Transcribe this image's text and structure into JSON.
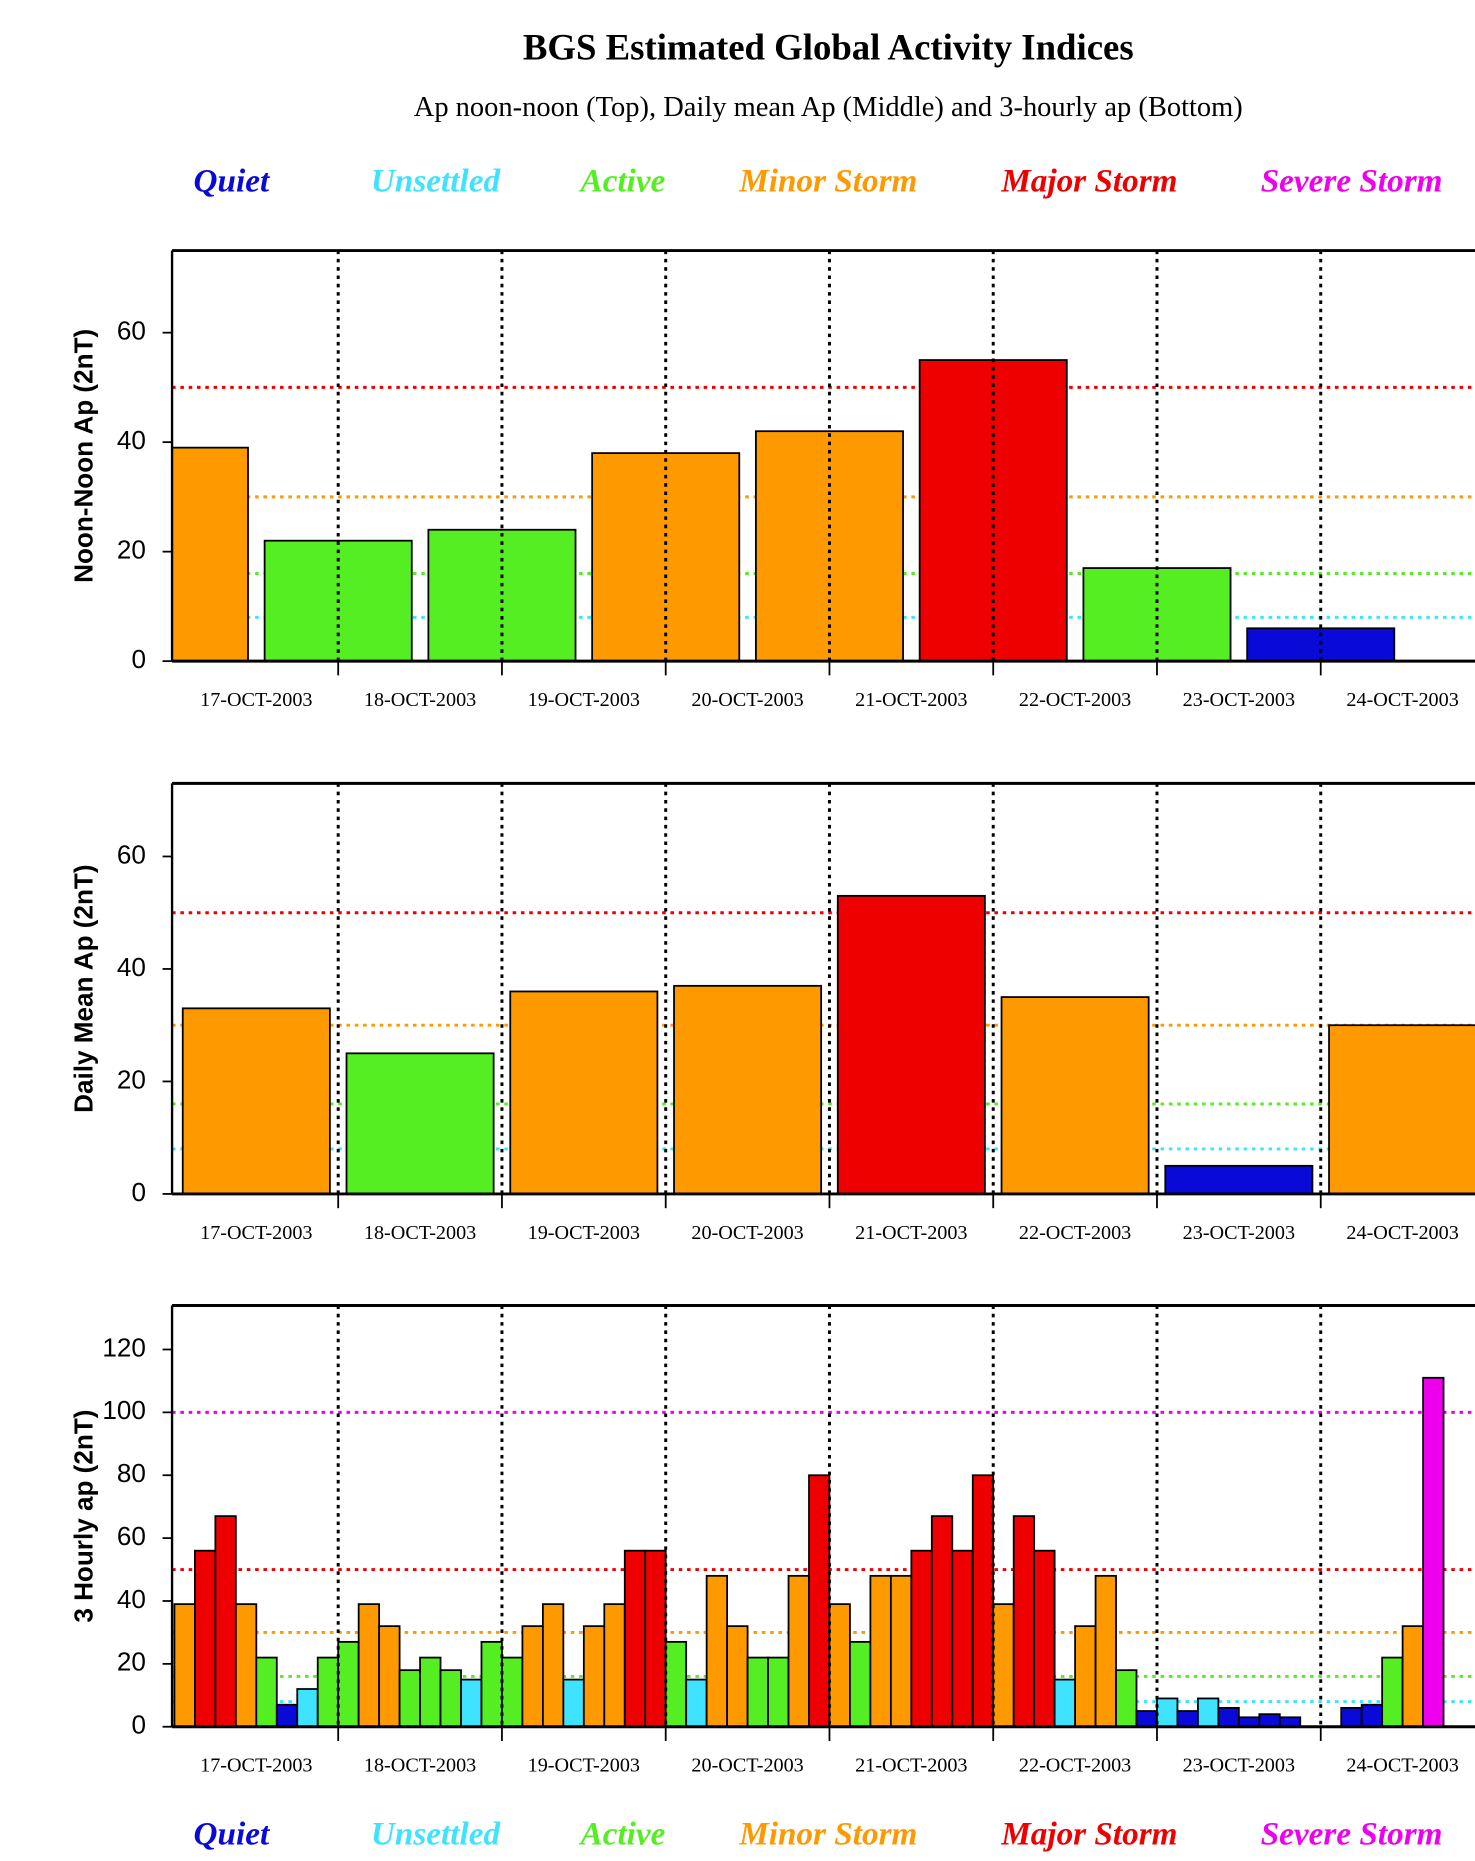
{
  "title": "BGS Estimated Global Activity Indices",
  "subtitle": "Ap noon-noon (Top), Daily mean Ap (Middle) and 3-hourly ap (Bottom)",
  "legend": [
    {
      "name": "Quiet",
      "color": "#0a0ad8",
      "min": 0
    },
    {
      "name": "Unsettled",
      "color": "#3fe3ff",
      "min": 8
    },
    {
      "name": "Active",
      "color": "#55ee22",
      "min": 16
    },
    {
      "name": "Minor Storm",
      "color": "#ff9900",
      "min": 30
    },
    {
      "name": "Major Storm",
      "color": "#ee0000",
      "min": 50
    },
    {
      "name": "Severe Storm",
      "color": "#ee00ee",
      "min": 100
    }
  ],
  "chart_data": [
    {
      "type": "bar",
      "align": "edge",
      "ylabel": "Noon-Noon Ap (2nT)",
      "categories": [
        "17-OCT-2003",
        "18-OCT-2003",
        "19-OCT-2003",
        "20-OCT-2003",
        "21-OCT-2003",
        "22-OCT-2003",
        "23-OCT-2003",
        "24-OCT-2003"
      ],
      "values": [
        39,
        22,
        24,
        38,
        42,
        55,
        17,
        6
      ],
      "ylim": [
        0,
        75
      ],
      "yticks": [
        0,
        20,
        40,
        60
      ]
    },
    {
      "type": "bar",
      "align": "center",
      "ylabel": "Daily Mean Ap (2nT)",
      "categories": [
        "17-OCT-2003",
        "18-OCT-2003",
        "19-OCT-2003",
        "20-OCT-2003",
        "21-OCT-2003",
        "22-OCT-2003",
        "23-OCT-2003",
        "24-OCT-2003"
      ],
      "values": [
        33,
        25,
        36,
        37,
        53,
        35,
        5,
        30
      ],
      "ylim": [
        0,
        73
      ],
      "yticks": [
        0,
        20,
        40,
        60
      ]
    },
    {
      "type": "bar",
      "align": "slots",
      "ylabel": "3 Hourly ap (2nT)",
      "categories": [
        "17-OCT-2003",
        "18-OCT-2003",
        "19-OCT-2003",
        "20-OCT-2003",
        "21-OCT-2003",
        "22-OCT-2003",
        "23-OCT-2003",
        "24-OCT-2003"
      ],
      "values": [
        [
          39,
          56,
          67,
          39,
          22,
          7,
          12,
          22
        ],
        [
          27,
          39,
          32,
          18,
          22,
          18,
          15,
          27
        ],
        [
          22,
          32,
          39,
          15,
          32,
          39,
          56,
          56
        ],
        [
          27,
          15,
          48,
          32,
          22,
          22,
          48,
          80
        ],
        [
          39,
          27,
          48,
          48,
          56,
          67,
          56,
          80
        ],
        [
          39,
          67,
          56,
          15,
          32,
          48,
          18,
          5
        ],
        [
          9,
          5,
          9,
          6,
          3,
          4,
          3,
          0
        ],
        [
          0,
          6,
          7,
          22,
          32,
          111,
          null,
          null
        ]
      ],
      "ylim": [
        0,
        134
      ],
      "yticks": [
        0,
        20,
        40,
        60,
        80,
        100,
        120
      ]
    }
  ]
}
